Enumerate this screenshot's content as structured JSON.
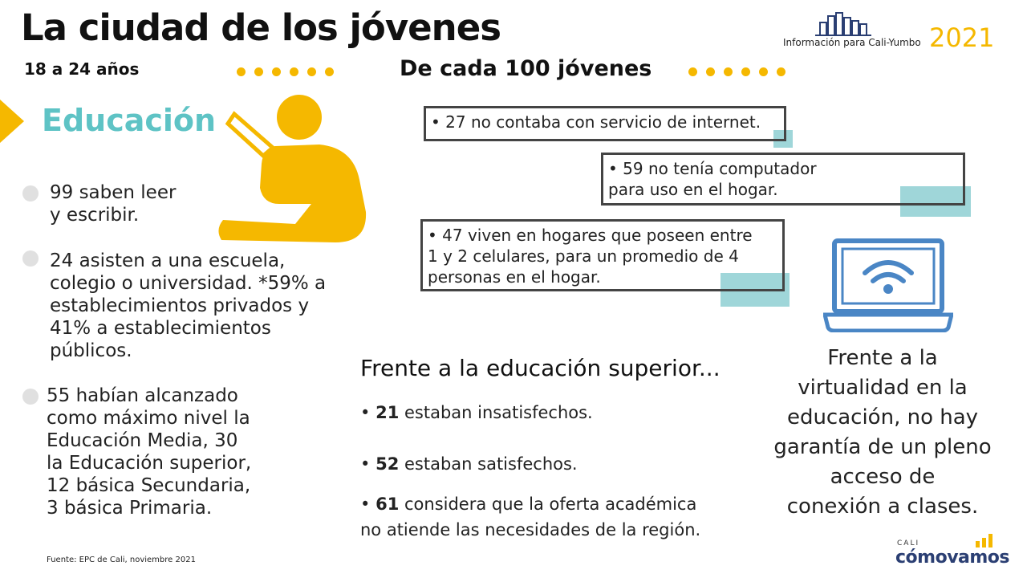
{
  "header": {
    "title": "La ciudad de los jóvenes",
    "age_range": "18 a 24 años",
    "section_title": "De cada 100 jóvenes",
    "brand_info": "Información para Cali-Yumbo",
    "year": "2021"
  },
  "education": {
    "label": "Educación",
    "items": [
      "99 saben leer\ny escribir.",
      "24 asisten a una escuela,\ncolegio o universidad. *59% a\nestablecimientos privados y\n41% a establecimientos\npúblicos.",
      "55 habían alcanzado\ncomo máximo nivel la\nEducación Media, 30\nla Educación superior,\n12 básica Secundaria,\n3 básica Primaria."
    ]
  },
  "connectivity": {
    "boxes": [
      "• 27 no contaba con servicio de internet.",
      "• 59 no tenía computador\npara uso en el hogar.",
      "• 47 viven en hogares que poseen entre\n1 y 2 celulares, para un promedio de 4\npersonas en el hogar."
    ]
  },
  "higher_education": {
    "title": "Frente a la educación superior...",
    "items": [
      {
        "bullet": "•",
        "number": "21",
        "text": " estaban insatisfechos."
      },
      {
        "bullet": "•",
        "number": "52",
        "text": " estaban satisfechos."
      },
      {
        "bullet": "•",
        "number": "61",
        "text": " considera que la oferta académica\nno atiende las necesidades de la región."
      }
    ]
  },
  "virtuality": {
    "text": "Frente a la\nvirtualidad en la\neducación, no hay\ngarantía de un pleno\nacceso de\nconexión a clases."
  },
  "footer": {
    "source": "Fuente: EPC de Cali, noviembre 2021",
    "logo_small": "CALI",
    "logo_big": "cómovamos"
  },
  "colors": {
    "accent_yellow": "#f5b800",
    "accent_teal": "#5ec3c5",
    "box_teal": "#9fd6d9",
    "laptop_blue": "#4a86c5",
    "logo_navy": "#2b3f73"
  },
  "icons": [
    "reading-person-icon",
    "laptop-wifi-icon",
    "city-skyline-icon",
    "bar-chart-icon"
  ]
}
